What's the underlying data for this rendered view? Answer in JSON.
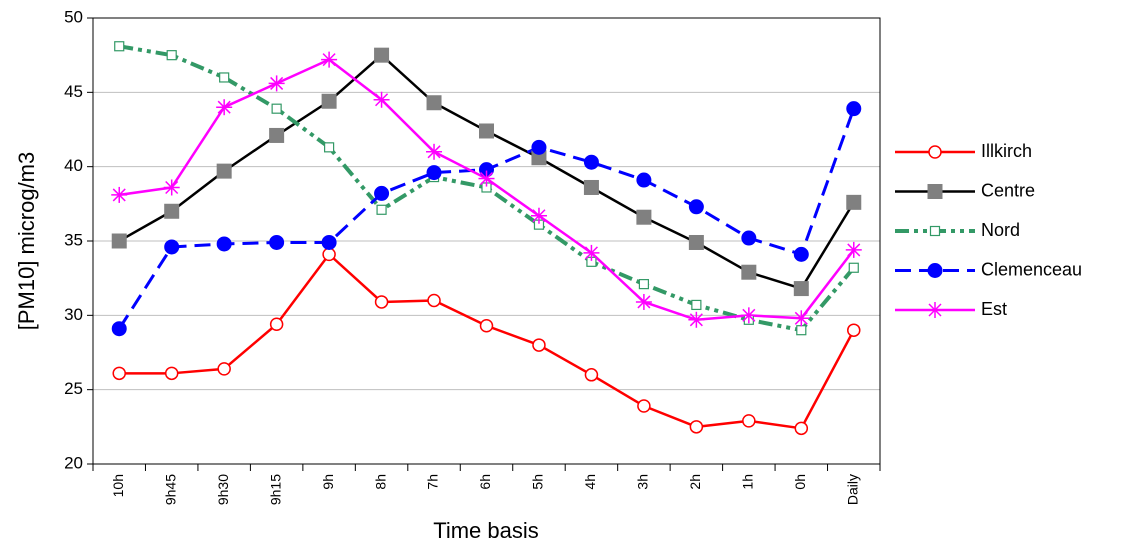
{
  "chart_data": {
    "type": "line",
    "x_label": "Time basis",
    "y_label": "[PM10] microg/m3",
    "categories": [
      "10h",
      "9h45",
      "9h30",
      "9h15",
      "9h",
      "8h",
      "7h",
      "6h",
      "5h",
      "4h",
      "3h",
      "2h",
      "1h",
      "0h",
      "Daily"
    ],
    "series": [
      {
        "name": "Illkirch",
        "color": "#ff0000",
        "marker": "open-circle",
        "dash": "solid",
        "values": [
          26.1,
          26.1,
          26.4,
          29.4,
          34.1,
          30.9,
          31.0,
          29.3,
          28.0,
          26.0,
          23.9,
          22.5,
          22.9,
          22.4,
          29.0
        ]
      },
      {
        "name": "Centre",
        "color": "#000000",
        "marker": "square",
        "dash": "solid",
        "values": [
          35.0,
          37.0,
          39.7,
          42.1,
          44.4,
          47.5,
          44.3,
          42.4,
          40.6,
          38.6,
          36.6,
          34.9,
          32.9,
          31.8,
          37.6
        ]
      },
      {
        "name": "Nord",
        "color": "#339966",
        "marker": "open-square",
        "dash": "dashdotdot",
        "values": [
          48.1,
          47.5,
          46.0,
          43.9,
          41.3,
          37.1,
          39.3,
          38.6,
          36.1,
          33.6,
          32.1,
          30.7,
          29.7,
          29.0,
          33.2
        ]
      },
      {
        "name": "Clemenceau",
        "color": "#0000ff",
        "marker": "circle",
        "dash": "dash",
        "values": [
          29.1,
          34.6,
          34.8,
          34.9,
          34.9,
          38.2,
          39.6,
          39.8,
          41.3,
          40.3,
          39.1,
          37.3,
          35.2,
          34.1,
          43.9
        ]
      },
      {
        "name": "Est",
        "color": "#ff00ff",
        "marker": "asterisk",
        "dash": "solid",
        "values": [
          38.1,
          38.6,
          44.0,
          45.6,
          47.2,
          44.5,
          41.0,
          39.2,
          36.7,
          34.2,
          30.9,
          29.7,
          30.0,
          29.8,
          34.4
        ]
      }
    ],
    "ylim": [
      20,
      50
    ],
    "yticks": [
      20,
      25,
      30,
      35,
      40,
      45,
      50
    ],
    "grid": true,
    "legend": "right"
  }
}
